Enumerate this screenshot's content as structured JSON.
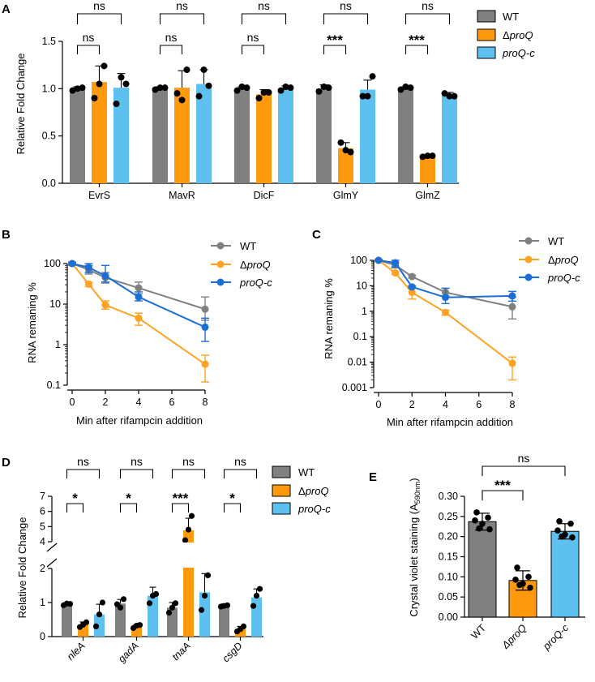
{
  "colors": {
    "WT": "#808080",
    "dproQ": "#FF9A0E",
    "proQc": "#5EC0EE",
    "line_WT": "#808080",
    "line_dproQ": "#FFA221",
    "line_proQc": "#1A6FD6"
  },
  "legend": {
    "wt": "WT",
    "delta": "Δ",
    "proq": "proQ",
    "proqc": "proQ-c"
  },
  "chart_data": [
    {
      "panel": "A",
      "type": "bar",
      "ylabel": "Relative Fold Change",
      "ylim": [
        0,
        1.5
      ],
      "yticks": [
        "0.0",
        "0.5",
        "1.0",
        "1.5"
      ],
      "categories": [
        "EvrS",
        "MavR",
        "DicF",
        "GlmY",
        "GlmZ"
      ],
      "series": [
        {
          "name": "WT",
          "values": [
            1.0,
            1.0,
            1.0,
            1.0,
            1.0
          ],
          "err": [
            0.02,
            0.02,
            0.02,
            0.04,
            0.02
          ],
          "points": [
            [
              0.98,
              1.0,
              1.01
            ],
            [
              0.99,
              1.01,
              1.01
            ],
            [
              0.98,
              1.02,
              1.01
            ],
            [
              0.97,
              1.02,
              1.01
            ],
            [
              0.99,
              1.02,
              1.01
            ]
          ]
        },
        {
          "name": "ΔproQ",
          "values": [
            1.07,
            1.01,
            0.94,
            0.37,
            0.28
          ],
          "err": [
            0.17,
            0.18,
            0.05,
            0.06,
            0.02
          ],
          "points": [
            [
              0.9,
              1.05,
              1.24
            ],
            [
              0.95,
              0.88,
              1.2
            ],
            [
              0.9,
              0.96,
              0.96
            ],
            [
              0.43,
              0.35,
              0.33
            ],
            [
              0.28,
              0.29,
              0.29
            ]
          ]
        },
        {
          "name": "proQ-c",
          "values": [
            1.01,
            1.05,
            1.0,
            0.99,
            0.93
          ],
          "err": [
            0.15,
            0.15,
            0.03,
            0.1,
            0.03
          ],
          "points": [
            [
              0.84,
              1.12,
              1.05
            ],
            [
              0.92,
              1.2,
              1.03
            ],
            [
              0.98,
              1.02,
              1.01
            ],
            [
              0.92,
              0.92,
              1.13
            ],
            [
              0.95,
              0.92,
              0.92
            ]
          ]
        }
      ],
      "significance_top": [
        "ns",
        "ns",
        "ns",
        "ns",
        "ns"
      ],
      "significance_inner": [
        "ns",
        "ns",
        "ns",
        "***",
        "***"
      ]
    },
    {
      "panel": "B",
      "type": "line",
      "yscale": "log",
      "xlabel": "Min after rifampcin addition",
      "ylabel": "RNA remaning %",
      "x": [
        0,
        1,
        2,
        4,
        8
      ],
      "xticks": [
        "0",
        "2",
        "4",
        "6",
        "8"
      ],
      "ylim": [
        0.1,
        100
      ],
      "yticks": [
        "0.1",
        "1",
        "10",
        "100"
      ],
      "series": [
        {
          "name": "WT",
          "values": [
            100,
            70,
            45,
            25,
            7.5
          ],
          "err_lo": [
            90,
            55,
            33,
            18,
            4
          ],
          "err_hi": [
            110,
            90,
            60,
            35,
            15
          ]
        },
        {
          "name": "ΔproQ",
          "values": [
            100,
            31,
            9.5,
            4.5,
            0.33
          ],
          "err_lo": [
            95,
            27,
            7.5,
            3,
            0.12
          ],
          "err_hi": [
            105,
            35,
            12,
            6,
            0.55
          ]
        },
        {
          "name": "proQ-c",
          "values": [
            100,
            80,
            50,
            15,
            2.7
          ],
          "err_lo": [
            95,
            60,
            35,
            12,
            1.2
          ],
          "err_hi": [
            105,
            100,
            90,
            20,
            4.5
          ]
        }
      ]
    },
    {
      "panel": "C",
      "type": "line",
      "yscale": "log",
      "xlabel": "Min after rifampcin addition",
      "ylabel": "RNA remaning %",
      "x": [
        0,
        1,
        2,
        4,
        8
      ],
      "xticks": [
        "0",
        "2",
        "4",
        "6",
        "8"
      ],
      "ylim": [
        0.001,
        100
      ],
      "yticks": [
        "0.001",
        "0.01",
        "0.1",
        "1",
        "10",
        "100"
      ],
      "series": [
        {
          "name": "WT",
          "values": [
            100,
            65,
            23,
            5.5,
            1.5
          ],
          "err_lo": [
            90,
            50,
            20,
            4,
            0.5
          ],
          "err_hi": [
            110,
            80,
            26,
            8,
            3.5
          ]
        },
        {
          "name": "ΔproQ",
          "values": [
            100,
            32,
            5.5,
            0.9,
            0.009
          ],
          "err_lo": [
            95,
            28,
            3,
            0.7,
            0.002
          ],
          "err_hi": [
            105,
            36,
            9,
            1.1,
            0.016
          ]
        },
        {
          "name": "proQ-c",
          "values": [
            100,
            80,
            9,
            3.5,
            4
          ],
          "err_lo": [
            95,
            55,
            8,
            2,
            2.5
          ],
          "err_hi": [
            105,
            100,
            10,
            8,
            6
          ]
        }
      ]
    },
    {
      "panel": "D",
      "type": "bar",
      "ylabel": "Relative Fold Change",
      "broken_axis": {
        "lower": [
          0,
          2
        ],
        "upper": [
          4,
          7
        ]
      },
      "yticks_lower": [
        "0",
        "1",
        "2"
      ],
      "yticks_upper": [
        "4",
        "5",
        "6",
        "7"
      ],
      "categories": [
        "nleA",
        "gadA",
        "tnaA",
        "csgD"
      ],
      "series": [
        {
          "name": "WT",
          "values": [
            0.95,
            0.97,
            0.85,
            0.9
          ],
          "err": [
            0.05,
            0.12,
            0.15,
            0.06
          ],
          "points": [
            [
              0.92,
              0.97,
              0.96
            ],
            [
              0.95,
              0.85,
              1.1
            ],
            [
              0.7,
              0.85,
              0.98
            ],
            [
              0.88,
              0.9,
              0.92
            ]
          ]
        },
        {
          "name": "ΔproQ",
          "values": [
            0.35,
            0.3,
            4.75,
            0.22
          ],
          "err": [
            0.08,
            0.05,
            0.8,
            0.08
          ],
          "points": [
            [
              0.28,
              0.35,
              0.42
            ],
            [
              0.25,
              0.32,
              0.34
            ],
            [
              4.1,
              4.8,
              5.7
            ],
            [
              0.15,
              0.22,
              0.3
            ]
          ]
        },
        {
          "name": "proQ-c",
          "values": [
            0.65,
            1.2,
            1.3,
            1.15
          ],
          "err": [
            0.3,
            0.25,
            0.55,
            0.25
          ],
          "points": [
            [
              0.3,
              0.65,
              1.0
            ],
            [
              0.98,
              1.2,
              1.25
            ],
            [
              0.78,
              1.2,
              1.8
            ],
            [
              0.9,
              1.2,
              1.4
            ]
          ]
        }
      ],
      "significance_top": [
        "ns",
        "ns",
        "ns",
        "ns"
      ],
      "significance_inner": [
        "*",
        "*",
        "***",
        "*"
      ]
    },
    {
      "panel": "E",
      "type": "bar",
      "ylabel": "Crystal violet staining (A",
      "ylabel_sub": "590nm",
      "ylabel_close": ")",
      "ylim": [
        0,
        0.3
      ],
      "yticks": [
        "0.00",
        "0.05",
        "0.10",
        "0.15",
        "0.20",
        "0.25",
        "0.30"
      ],
      "categories": [
        "WT",
        "ΔproQ",
        "proQ-c"
      ],
      "values": [
        0.237,
        0.091,
        0.213
      ],
      "err": [
        0.021,
        0.024,
        0.019
      ],
      "points": [
        [
          0.26,
          0.247,
          0.24,
          0.232,
          0.218,
          0.22
        ],
        [
          0.123,
          0.1,
          0.093,
          0.083,
          0.073,
          0.08
        ],
        [
          0.238,
          0.232,
          0.215,
          0.205,
          0.198,
          0.2
        ]
      ],
      "significance": [
        {
          "label": "***"
        },
        {
          "label": "ns"
        }
      ]
    }
  ],
  "panel_labels": [
    "A",
    "B",
    "C",
    "D",
    "E"
  ]
}
